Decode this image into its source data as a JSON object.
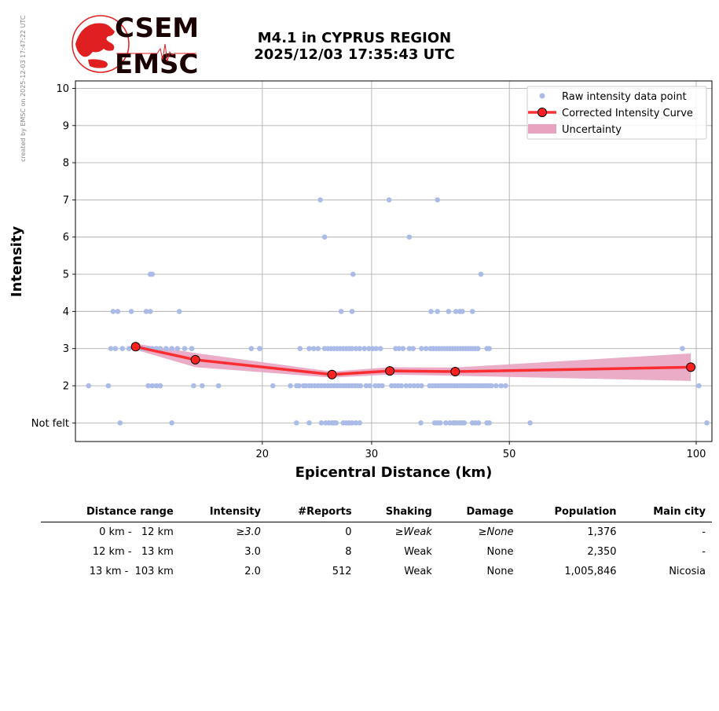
{
  "credit": "created by EMSC on 2025-12-03 17:47:22 UTC",
  "logo": {
    "line1": "CSEM",
    "line2": "EMSC"
  },
  "header": {
    "title_line1": "M4.1 in CYPRUS REGION",
    "title_line2": "2025/12/03 17:35:43 UTC"
  },
  "colors": {
    "raw_points": "#aabbe8",
    "curve": "#ff2020",
    "marker_edge": "#000000",
    "band": "#e8a3c0",
    "grid": "#b0b0b0"
  },
  "chart_data": {
    "type": "scatter",
    "xlabel": "Epicentral Distance (km)",
    "ylabel": "Intensity",
    "x_scale": "log",
    "xlim": [
      10,
      106
    ],
    "x_ticks": [
      20,
      30,
      50,
      100
    ],
    "ylim": [
      0.5,
      10.2
    ],
    "y_ticks": [
      {
        "value": 1,
        "label": "Not felt"
      },
      {
        "value": 2,
        "label": "2"
      },
      {
        "value": 3,
        "label": "3"
      },
      {
        "value": 4,
        "label": "4"
      },
      {
        "value": 5,
        "label": "5"
      },
      {
        "value": 6,
        "label": "6"
      },
      {
        "value": 7,
        "label": "7"
      },
      {
        "value": 8,
        "label": "8"
      },
      {
        "value": 9,
        "label": "9"
      },
      {
        "value": 10,
        "label": "10"
      }
    ],
    "grid": true,
    "legend_position": "top-right",
    "legend": [
      "Raw intensity data point",
      "Corrected Intensity Curve",
      "Uncertainty"
    ],
    "raw_points": {
      "intensity_1": [
        11.8,
        14.3,
        22.7,
        23.8,
        24.9,
        25.3,
        25.6,
        25.9,
        26.1,
        26.3,
        27.0,
        27.3,
        27.6,
        27.9,
        28.3,
        28.7,
        36.0,
        37.9,
        38.3,
        38.7,
        39.5,
        40.1,
        40.6,
        40.9,
        41.2,
        41.6,
        42.0,
        42.3,
        43.6,
        44.1,
        44.6,
        46.0,
        46.4,
        54.0,
        104.0
      ],
      "intensity_2": [
        10.5,
        11.3,
        13.1,
        13.3,
        13.5,
        13.7,
        15.5,
        16.0,
        17.0,
        20.8,
        22.2,
        22.7,
        22.9,
        23.3,
        23.5,
        23.8,
        24.0,
        24.3,
        24.6,
        24.9,
        25.2,
        25.5,
        25.8,
        26.1,
        26.4,
        26.7,
        27.0,
        27.3,
        27.6,
        27.9,
        28.2,
        28.5,
        28.8,
        29.4,
        29.8,
        30.4,
        30.8,
        31.2,
        32.3,
        32.7,
        33.1,
        33.5,
        34.1,
        34.6,
        35.1,
        35.6,
        36.1,
        37.2,
        37.6,
        38.0,
        38.4,
        38.8,
        39.2,
        39.6,
        40.0,
        40.4,
        40.8,
        41.2,
        41.6,
        42.0,
        42.4,
        42.8,
        43.2,
        43.6,
        44.0,
        44.4,
        44.8,
        45.2,
        45.6,
        46.0,
        46.4,
        46.8,
        47.6,
        48.5,
        49.3,
        101.0
      ],
      "intensity_3": [
        11.4,
        11.6,
        11.9,
        12.2,
        12.5,
        12.8,
        13.1,
        13.3,
        13.5,
        13.7,
        14.0,
        14.3,
        14.6,
        15.0,
        15.4,
        19.2,
        19.8,
        23.0,
        23.8,
        24.2,
        24.6,
        25.2,
        25.5,
        25.8,
        26.1,
        26.4,
        26.7,
        27.0,
        27.3,
        27.6,
        27.9,
        28.3,
        28.7,
        29.2,
        29.7,
        30.1,
        30.5,
        31.0,
        32.8,
        33.2,
        33.7,
        34.5,
        35.0,
        36.1,
        36.7,
        37.3,
        37.7,
        38.1,
        38.5,
        38.9,
        39.3,
        39.7,
        40.1,
        40.5,
        40.9,
        41.3,
        41.7,
        42.1,
        42.5,
        42.9,
        43.3,
        43.7,
        44.1,
        44.5,
        46.0,
        46.4,
        95.0
      ],
      "intensity_4": [
        11.5,
        11.7,
        12.3,
        13.0,
        13.2,
        14.7,
        26.8,
        27.9,
        37.4,
        38.3,
        39.9,
        41.0,
        41.6,
        42.0,
        43.6
      ],
      "intensity_5": [
        13.2,
        13.3,
        28.0,
        45.0
      ],
      "intensity_6": [
        25.2,
        34.5
      ],
      "intensity_7": [
        24.8,
        32.0,
        38.3
      ]
    },
    "corrected_curve": {
      "x": [
        12.5,
        15.6,
        25.9,
        32.1,
        40.9,
        98.0
      ],
      "y": [
        3.05,
        2.7,
        2.3,
        2.4,
        2.38,
        2.5
      ]
    },
    "uncertainty": {
      "x": [
        12.5,
        15.6,
        25.9,
        32.1,
        40.9,
        98.0
      ],
      "lower": [
        2.97,
        2.5,
        2.22,
        2.3,
        2.27,
        2.13
      ],
      "upper": [
        3.13,
        2.88,
        2.38,
        2.5,
        2.49,
        2.87
      ]
    }
  },
  "summary_table": {
    "headers": [
      "Distance range",
      "Intensity",
      "#Reports",
      "Shaking",
      "Damage",
      "Population",
      "Main city"
    ],
    "rows": [
      [
        "0 km -   12 km",
        "≥3.0",
        "0",
        "≥Weak",
        "≥None",
        "1,376",
        "-"
      ],
      [
        "12 km -   13 km",
        "3.0",
        "8",
        "Weak",
        "None",
        "2,350",
        "-"
      ],
      [
        "13 km -  103 km",
        "2.0",
        "512",
        "Weak",
        "None",
        "1,005,846",
        "Nicosia"
      ]
    ]
  }
}
